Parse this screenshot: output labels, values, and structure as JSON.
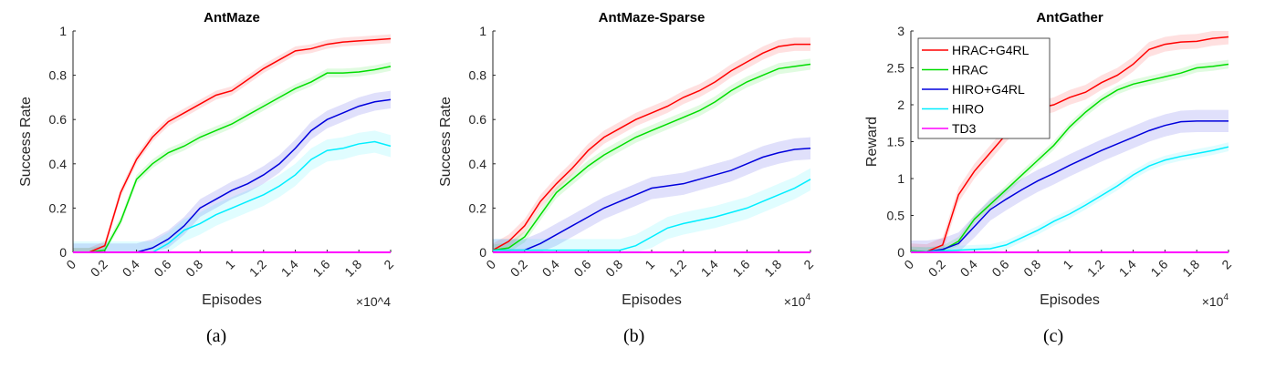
{
  "colors": {
    "HRAC+G4RL": "#ff0000",
    "HRAC": "#00dd00",
    "HIRO+G4RL": "#0000dd",
    "HIRO": "#00eeff",
    "TD3": "#ff00ff"
  },
  "captions": [
    "(a)",
    "(b)",
    "(c)"
  ],
  "chart_data": [
    {
      "type": "line",
      "title": "AntMaze",
      "xlabel": "Episodes",
      "ylabel": "Success Rate",
      "x_multiplier": "×10^4",
      "x_exponent_label": "×10",
      "x_exponent": "4",
      "xlim": [
        0,
        2
      ],
      "ylim": [
        0,
        1
      ],
      "xticks": [
        "0",
        "0.2",
        "0.4",
        "0.6",
        "0.8",
        "1",
        "1.2",
        "1.4",
        "1.6",
        "1.8",
        "2"
      ],
      "yticks": [
        "0",
        "0.2",
        "0.4",
        "0.6",
        "0.8",
        "1"
      ],
      "grid": false,
      "legend": "none",
      "x": [
        0,
        0.1,
        0.2,
        0.3,
        0.4,
        0.5,
        0.6,
        0.7,
        0.8,
        0.9,
        1.0,
        1.1,
        1.2,
        1.3,
        1.4,
        1.5,
        1.6,
        1.7,
        1.8,
        1.9,
        2.0
      ],
      "series": [
        {
          "name": "HRAC+G4RL",
          "std": 0.02,
          "values": [
            0,
            0,
            0.03,
            0.27,
            0.42,
            0.52,
            0.59,
            0.63,
            0.67,
            0.71,
            0.73,
            0.78,
            0.83,
            0.87,
            0.91,
            0.92,
            0.94,
            0.95,
            0.955,
            0.96,
            0.965
          ]
        },
        {
          "name": "HRAC",
          "std": 0.02,
          "values": [
            0,
            0,
            0.01,
            0.14,
            0.33,
            0.4,
            0.45,
            0.48,
            0.52,
            0.55,
            0.58,
            0.62,
            0.66,
            0.7,
            0.74,
            0.77,
            0.81,
            0.81,
            0.815,
            0.825,
            0.84
          ]
        },
        {
          "name": "HIRO+G4RL",
          "std": 0.04,
          "values": [
            0,
            0,
            0,
            0,
            0,
            0.02,
            0.06,
            0.12,
            0.2,
            0.24,
            0.28,
            0.31,
            0.35,
            0.4,
            0.47,
            0.55,
            0.6,
            0.63,
            0.66,
            0.68,
            0.69
          ]
        },
        {
          "name": "HIRO",
          "std": 0.05,
          "values": [
            0,
            0,
            0,
            0,
            0,
            0,
            0.04,
            0.1,
            0.13,
            0.17,
            0.2,
            0.23,
            0.26,
            0.3,
            0.35,
            0.42,
            0.46,
            0.47,
            0.49,
            0.5,
            0.48
          ]
        },
        {
          "name": "TD3",
          "std": 0,
          "values": [
            0,
            0,
            0,
            0,
            0,
            0,
            0,
            0,
            0,
            0,
            0,
            0,
            0,
            0,
            0,
            0,
            0,
            0,
            0,
            0,
            0
          ]
        }
      ]
    },
    {
      "type": "line",
      "title": "AntMaze-Sparse",
      "xlabel": "Episodes",
      "ylabel": "Success Rate",
      "x_exponent_label": "×10",
      "x_exponent": "4",
      "xlim": [
        0,
        2
      ],
      "ylim": [
        0,
        1
      ],
      "xticks": [
        "0",
        "0.2",
        "0.4",
        "0.6",
        "0.8",
        "1",
        "1.2",
        "1.4",
        "1.6",
        "1.8",
        "2"
      ],
      "yticks": [
        "0",
        "0.2",
        "0.4",
        "0.6",
        "0.8",
        "1"
      ],
      "grid": false,
      "legend": "none",
      "x": [
        0,
        0.1,
        0.2,
        0.3,
        0.4,
        0.5,
        0.6,
        0.7,
        0.8,
        0.9,
        1.0,
        1.1,
        1.2,
        1.3,
        1.4,
        1.5,
        1.6,
        1.7,
        1.8,
        1.9,
        2.0
      ],
      "series": [
        {
          "name": "HRAC+G4RL",
          "std": 0.03,
          "values": [
            0.01,
            0.05,
            0.12,
            0.23,
            0.31,
            0.38,
            0.46,
            0.52,
            0.56,
            0.6,
            0.63,
            0.66,
            0.7,
            0.73,
            0.77,
            0.82,
            0.86,
            0.9,
            0.93,
            0.94,
            0.94
          ]
        },
        {
          "name": "HRAC",
          "std": 0.025,
          "values": [
            0.01,
            0.02,
            0.07,
            0.17,
            0.27,
            0.33,
            0.39,
            0.44,
            0.48,
            0.52,
            0.55,
            0.58,
            0.61,
            0.64,
            0.68,
            0.73,
            0.77,
            0.8,
            0.83,
            0.84,
            0.85
          ]
        },
        {
          "name": "HIRO+G4RL",
          "std": 0.05,
          "values": [
            0.01,
            0.01,
            0.01,
            0.04,
            0.08,
            0.12,
            0.16,
            0.2,
            0.23,
            0.26,
            0.29,
            0.3,
            0.31,
            0.33,
            0.35,
            0.37,
            0.4,
            0.43,
            0.45,
            0.465,
            0.47
          ]
        },
        {
          "name": "HIRO",
          "std": 0.05,
          "values": [
            0.01,
            0.01,
            0.01,
            0.01,
            0.01,
            0.01,
            0.01,
            0.01,
            0.01,
            0.03,
            0.07,
            0.11,
            0.13,
            0.145,
            0.16,
            0.18,
            0.2,
            0.23,
            0.26,
            0.29,
            0.33
          ]
        },
        {
          "name": "TD3",
          "std": 0,
          "values": [
            0,
            0,
            0,
            0,
            0,
            0,
            0,
            0,
            0,
            0,
            0,
            0,
            0,
            0,
            0,
            0,
            0,
            0,
            0,
            0,
            0
          ]
        }
      ]
    },
    {
      "type": "line",
      "title": "AntGather",
      "xlabel": "Episodes",
      "ylabel": "Reward",
      "x_exponent_label": "×10",
      "x_exponent": "4",
      "xlim": [
        0,
        2
      ],
      "ylim": [
        0,
        3
      ],
      "xticks": [
        "0",
        "0.2",
        "0.4",
        "0.6",
        "0.8",
        "1",
        "1.2",
        "1.4",
        "1.6",
        "1.8",
        "2"
      ],
      "yticks": [
        "0",
        "0.5",
        "1",
        "1.5",
        "2",
        "2.5",
        "3"
      ],
      "grid": false,
      "legend": "top-left",
      "x": [
        0,
        0.1,
        0.2,
        0.3,
        0.4,
        0.5,
        0.6,
        0.7,
        0.8,
        0.9,
        1.0,
        1.1,
        1.2,
        1.3,
        1.4,
        1.5,
        1.6,
        1.7,
        1.8,
        1.9,
        2.0
      ],
      "series": [
        {
          "name": "HRAC+G4RL",
          "std": 0.1,
          "values": [
            0.02,
            0.01,
            0.1,
            0.78,
            1.1,
            1.35,
            1.6,
            1.8,
            1.95,
            2.0,
            2.1,
            2.17,
            2.3,
            2.4,
            2.55,
            2.75,
            2.82,
            2.85,
            2.86,
            2.9,
            2.92
          ]
        },
        {
          "name": "HRAC",
          "std": 0.06,
          "values": [
            0.02,
            0.01,
            0.03,
            0.15,
            0.45,
            0.65,
            0.85,
            1.05,
            1.25,
            1.45,
            1.7,
            1.9,
            2.07,
            2.2,
            2.28,
            2.33,
            2.38,
            2.43,
            2.5,
            2.52,
            2.55
          ]
        },
        {
          "name": "HIRO+G4RL",
          "std": 0.15,
          "values": [
            0.01,
            0.01,
            0.04,
            0.12,
            0.35,
            0.58,
            0.72,
            0.85,
            0.97,
            1.07,
            1.18,
            1.28,
            1.38,
            1.47,
            1.56,
            1.65,
            1.72,
            1.77,
            1.78,
            1.78,
            1.78
          ]
        },
        {
          "name": "HIRO",
          "std": 0.06,
          "values": [
            0.01,
            0.01,
            0.02,
            0.03,
            0.04,
            0.05,
            0.1,
            0.2,
            0.3,
            0.42,
            0.52,
            0.64,
            0.77,
            0.9,
            1.05,
            1.17,
            1.25,
            1.3,
            1.34,
            1.38,
            1.43
          ]
        },
        {
          "name": "TD3",
          "std": 0,
          "values": [
            0,
            0,
            0,
            0,
            0,
            0,
            0,
            0,
            0,
            0,
            0,
            0,
            0,
            0,
            0,
            0,
            0,
            0,
            0,
            0,
            0
          ]
        }
      ]
    }
  ]
}
